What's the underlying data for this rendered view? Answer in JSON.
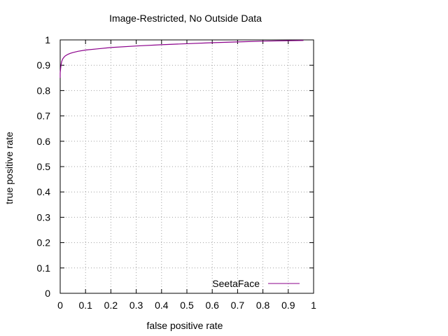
{
  "chart_data": {
    "type": "line",
    "title": "Image-Restricted, No Outside Data",
    "xlabel": "false positive rate",
    "ylabel": "true positive rate",
    "xlim": [
      0,
      1
    ],
    "ylim": [
      0,
      1
    ],
    "xticks": [
      "0",
      "0.1",
      "0.2",
      "0.3",
      "0.4",
      "0.5",
      "0.6",
      "0.7",
      "0.8",
      "0.9",
      "1"
    ],
    "yticks": [
      "0",
      "0.1",
      "0.2",
      "0.3",
      "0.4",
      "0.5",
      "0.6",
      "0.7",
      "0.8",
      "0.9",
      "1"
    ],
    "grid": true,
    "legend_position": "bottom-right",
    "series": [
      {
        "name": "SeetaFace",
        "color": "#8b008b",
        "x": [
          0.0,
          0.0,
          0.002,
          0.004,
          0.006,
          0.008,
          0.01,
          0.015,
          0.02,
          0.03,
          0.04,
          0.05,
          0.07,
          0.1,
          0.15,
          0.2,
          0.3,
          0.4,
          0.5,
          0.6,
          0.7,
          0.8,
          0.9,
          0.96
        ],
        "y": [
          0.85,
          0.87,
          0.89,
          0.905,
          0.915,
          0.92,
          0.925,
          0.932,
          0.937,
          0.943,
          0.947,
          0.95,
          0.955,
          0.96,
          0.965,
          0.97,
          0.976,
          0.981,
          0.985,
          0.989,
          0.992,
          0.995,
          0.997,
          0.998
        ]
      }
    ]
  }
}
